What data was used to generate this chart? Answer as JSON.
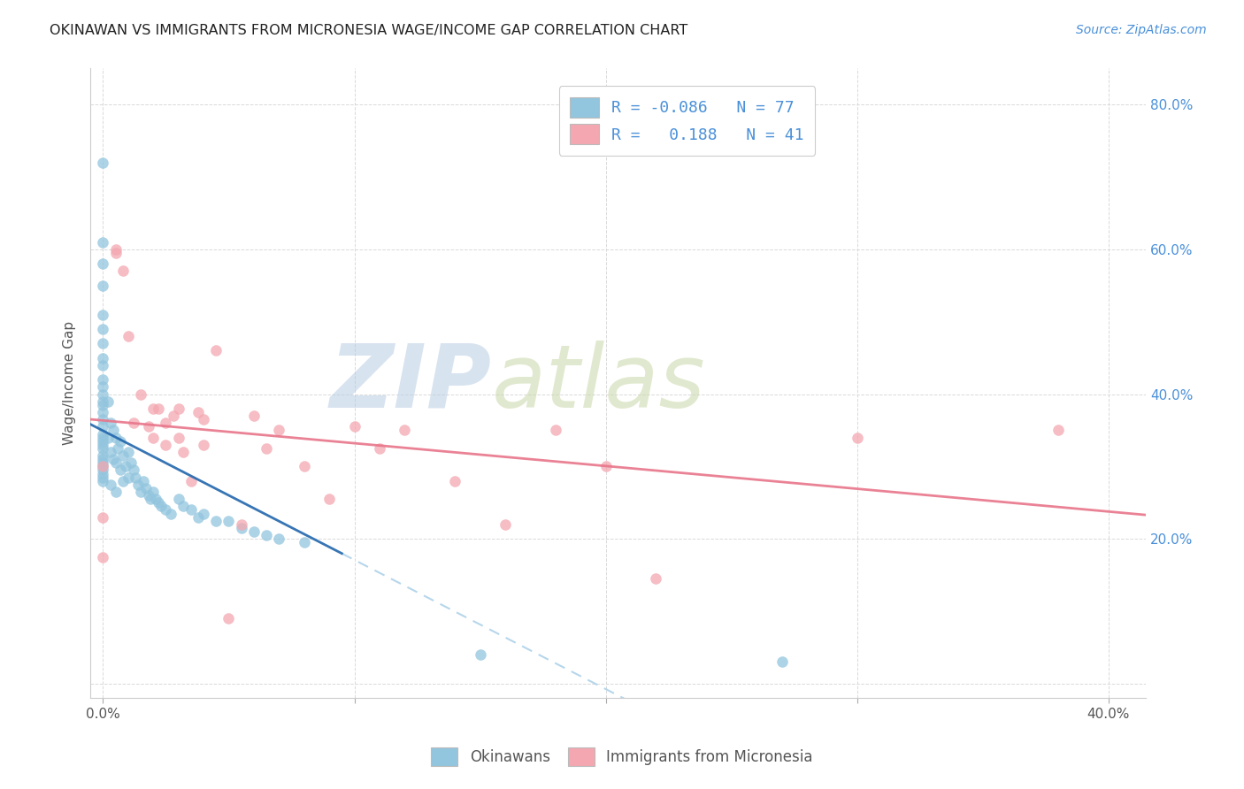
{
  "title": "OKINAWAN VS IMMIGRANTS FROM MICRONESIA WAGE/INCOME GAP CORRELATION CHART",
  "source": "Source: ZipAtlas.com",
  "ylabel": "Wage/Income Gap",
  "y_tick_labels": [
    "",
    "20.0%",
    "40.0%",
    "60.0%",
    "80.0%"
  ],
  "y_tick_values": [
    0.0,
    0.2,
    0.4,
    0.6,
    0.8
  ],
  "x_tick_labels": [
    "0.0%",
    "",
    "",
    "",
    "40.0%"
  ],
  "x_tick_values": [
    0.0,
    0.1,
    0.2,
    0.3,
    0.4
  ],
  "xmin": -0.005,
  "xmax": 0.415,
  "ymin": -0.02,
  "ymax": 0.85,
  "blue_color": "#92C5DE",
  "pink_color": "#F4A7B0",
  "blue_line_color": "#2166AC",
  "pink_line_color": "#E8758A",
  "blue_dash_color": "#AACFE8",
  "legend_label1": "R = -0.086   N = 77",
  "legend_label2": "R =   0.188   N = 41",
  "okinawan_x": [
    0.0,
    0.0,
    0.0,
    0.0,
    0.0,
    0.0,
    0.0,
    0.0,
    0.0,
    0.0,
    0.0,
    0.0,
    0.0,
    0.0,
    0.0,
    0.0,
    0.0,
    0.0,
    0.0,
    0.0,
    0.0,
    0.0,
    0.0,
    0.0,
    0.0,
    0.0,
    0.0,
    0.0,
    0.0,
    0.0,
    0.002,
    0.002,
    0.003,
    0.003,
    0.003,
    0.004,
    0.004,
    0.005,
    0.005,
    0.005,
    0.006,
    0.007,
    0.007,
    0.008,
    0.008,
    0.009,
    0.01,
    0.01,
    0.011,
    0.012,
    0.013,
    0.014,
    0.015,
    0.016,
    0.017,
    0.018,
    0.019,
    0.02,
    0.021,
    0.022,
    0.023,
    0.025,
    0.027,
    0.03,
    0.032,
    0.035,
    0.038,
    0.04,
    0.045,
    0.05,
    0.055,
    0.06,
    0.065,
    0.07,
    0.08,
    0.15,
    0.27
  ],
  "okinawan_y": [
    0.72,
    0.61,
    0.58,
    0.55,
    0.51,
    0.49,
    0.47,
    0.45,
    0.44,
    0.42,
    0.41,
    0.4,
    0.39,
    0.385,
    0.375,
    0.365,
    0.355,
    0.345,
    0.34,
    0.335,
    0.33,
    0.325,
    0.315,
    0.31,
    0.305,
    0.3,
    0.295,
    0.29,
    0.285,
    0.28,
    0.39,
    0.34,
    0.36,
    0.32,
    0.275,
    0.35,
    0.31,
    0.34,
    0.305,
    0.265,
    0.325,
    0.335,
    0.295,
    0.315,
    0.28,
    0.3,
    0.32,
    0.285,
    0.305,
    0.295,
    0.285,
    0.275,
    0.265,
    0.28,
    0.27,
    0.26,
    0.255,
    0.265,
    0.255,
    0.25,
    0.245,
    0.24,
    0.235,
    0.255,
    0.245,
    0.24,
    0.23,
    0.235,
    0.225,
    0.225,
    0.215,
    0.21,
    0.205,
    0.2,
    0.195,
    0.04,
    0.03
  ],
  "micronesia_x": [
    0.0,
    0.0,
    0.0,
    0.005,
    0.005,
    0.008,
    0.01,
    0.012,
    0.015,
    0.018,
    0.02,
    0.02,
    0.022,
    0.025,
    0.025,
    0.028,
    0.03,
    0.03,
    0.032,
    0.035,
    0.038,
    0.04,
    0.04,
    0.045,
    0.05,
    0.055,
    0.06,
    0.065,
    0.07,
    0.08,
    0.09,
    0.1,
    0.11,
    0.12,
    0.14,
    0.16,
    0.18,
    0.2,
    0.22,
    0.3,
    0.38
  ],
  "micronesia_y": [
    0.3,
    0.23,
    0.175,
    0.6,
    0.595,
    0.57,
    0.48,
    0.36,
    0.4,
    0.355,
    0.38,
    0.34,
    0.38,
    0.36,
    0.33,
    0.37,
    0.38,
    0.34,
    0.32,
    0.28,
    0.375,
    0.365,
    0.33,
    0.46,
    0.09,
    0.22,
    0.37,
    0.325,
    0.35,
    0.3,
    0.255,
    0.355,
    0.325,
    0.35,
    0.28,
    0.22,
    0.35,
    0.3,
    0.145,
    0.34,
    0.35
  ],
  "background_color": "#ffffff",
  "grid_color": "#d9d9d9",
  "watermark_zip_color": "#B8CCE4",
  "watermark_atlas_color": "#C8D8A8",
  "watermark_alpha": 0.55
}
